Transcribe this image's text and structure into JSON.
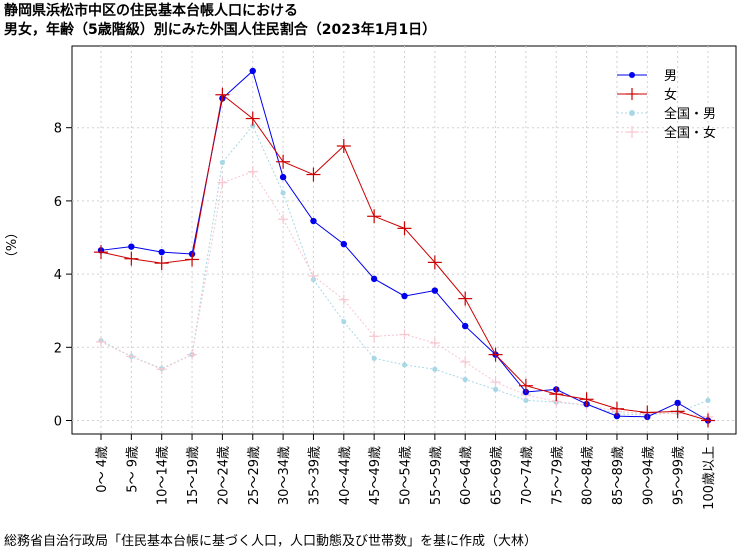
{
  "chart_data": {
    "type": "line",
    "title_line1": "静岡県浜松市中区の住民基本台帳人口における",
    "title_line2": "男女，年齢（5歳階級）別にみた外国人住民割合（2023年1月1日）",
    "ylabel": "（%）",
    "xlabel": "",
    "ylim": [
      0,
      9.5
    ],
    "yticks": [
      0,
      2,
      4,
      6,
      8
    ],
    "grid": true,
    "legend_position": "top-right",
    "categories": [
      "0～ 4歳",
      "5～ 9歳",
      "10～14歳",
      "15～19歳",
      "20～24歳",
      "25～29歳",
      "30～34歳",
      "35～39歳",
      "40～44歳",
      "45～49歳",
      "50～54歳",
      "55～59歳",
      "60～64歳",
      "65～69歳",
      "70～74歳",
      "75～79歳",
      "80～84歳",
      "85～89歳",
      "90～94歳",
      "95～99歳",
      "100歳以上"
    ],
    "series": [
      {
        "name": "男",
        "color": "#0000ee",
        "style": "solid-dot",
        "values": [
          4.65,
          4.75,
          4.6,
          4.55,
          8.8,
          9.55,
          6.65,
          5.45,
          4.82,
          3.87,
          3.4,
          3.55,
          2.58,
          1.8,
          0.78,
          0.85,
          0.45,
          0.12,
          0.1,
          0.48,
          0.0
        ]
      },
      {
        "name": "女",
        "color": "#cc0000",
        "style": "solid-plus",
        "values": [
          4.6,
          4.42,
          4.3,
          4.4,
          8.9,
          8.25,
          7.07,
          6.72,
          7.5,
          5.58,
          5.25,
          4.32,
          3.33,
          1.8,
          0.95,
          0.72,
          0.58,
          0.32,
          0.22,
          0.25,
          0.0
        ]
      },
      {
        "name": "全国・男",
        "color": "#a8d8e6",
        "style": "dotted-dot",
        "values": [
          2.18,
          1.75,
          1.42,
          1.8,
          7.05,
          8.05,
          6.22,
          3.85,
          2.7,
          1.7,
          1.52,
          1.4,
          1.12,
          0.85,
          0.55,
          0.5,
          0.42,
          0.18,
          0.15,
          0.22,
          0.55
        ]
      },
      {
        "name": "全国・女",
        "color": "#f7c6d0",
        "style": "dotted-plus",
        "values": [
          2.15,
          1.75,
          1.4,
          1.8,
          6.5,
          6.8,
          5.5,
          3.95,
          3.3,
          2.3,
          2.35,
          2.12,
          1.6,
          1.05,
          0.7,
          0.52,
          0.42,
          0.25,
          0.18,
          0.2,
          0.1
        ]
      }
    ]
  },
  "source": "総務省自治行政局「住民基本台帳に基づく人口，人口動態及び世帯数」を基に作成（大林）"
}
